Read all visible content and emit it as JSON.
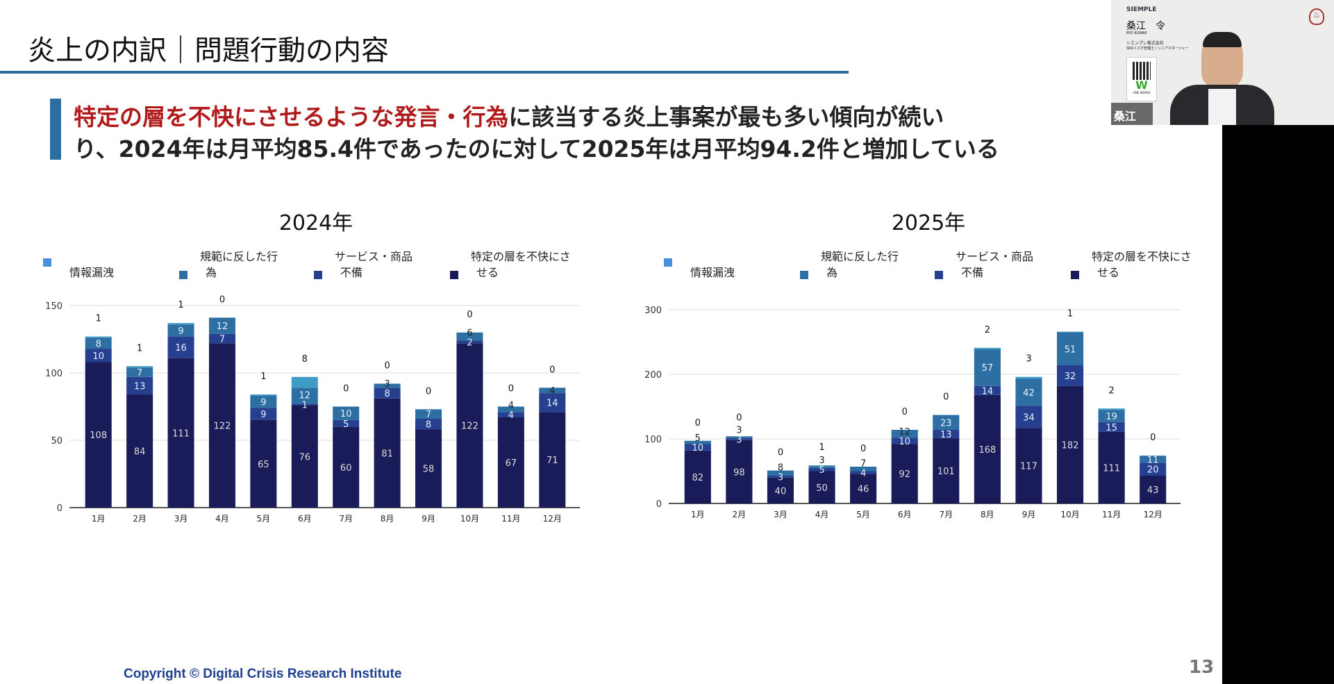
{
  "slide": {
    "title": "炎上の内訳｜問題行動の内容",
    "lead_red": "特定の層を不快にさせるような発言・行為",
    "lead_rest1": "に該当する炎上事案が最も多い傾向が続い",
    "lead_line2": "り、2024年は月平均85.4件であったのに対して2025年は月平均94.2件と増加している",
    "copyright": "Copyright © Digital Crisis Research Institute",
    "page_number": "13"
  },
  "video": {
    "brand": "SIEMPLE",
    "name": "桑江　令",
    "romaji": "RYO KUWAE",
    "company": "シエンプレ株式会社",
    "role": "SNSリスク管理士 / シニアマネージャー",
    "qr_label": "LINE WORKS",
    "name_tag": "桑江 令"
  },
  "colors": {
    "leak": "#4a8fdc",
    "norm": "#2e6fa3",
    "service": "#26408f",
    "offend": "#191c58",
    "accent": "#2a6fa0",
    "red": "#b01a1a"
  },
  "chart_data": [
    {
      "type": "bar",
      "stacked": true,
      "title": "2024年",
      "ylim": [
        0,
        150
      ],
      "yticks": [
        0,
        50,
        100,
        150
      ],
      "categories": [
        "1月",
        "2月",
        "3月",
        "4月",
        "5月",
        "6月",
        "7月",
        "8月",
        "9月",
        "10月",
        "11月",
        "12月"
      ],
      "legend": [
        "情報漏洩",
        "規範に反した行為",
        "サービス・商品不備",
        "特定の層を不快にさせる"
      ],
      "series": [
        {
          "name": "特定の層を不快にさせる",
          "values": [
            108,
            84,
            111,
            122,
            65,
            76,
            60,
            81,
            58,
            122,
            67,
            71
          ]
        },
        {
          "name": "サービス・商品不備",
          "values": [
            10,
            13,
            16,
            7,
            9,
            1,
            5,
            8,
            8,
            2,
            4,
            14
          ]
        },
        {
          "name": "規範に反した行為",
          "values": [
            8,
            7,
            9,
            12,
            9,
            12,
            10,
            3,
            7,
            6,
            4,
            4
          ]
        },
        {
          "name": "情報漏洩",
          "values": [
            1,
            1,
            1,
            0,
            1,
            8,
            0,
            0,
            0,
            0,
            0,
            0
          ]
        }
      ]
    },
    {
      "type": "bar",
      "stacked": true,
      "title": "2025年",
      "ylim": [
        0,
        300
      ],
      "yticks": [
        0,
        100,
        200,
        300
      ],
      "categories": [
        "1月",
        "2月",
        "3月",
        "4月",
        "5月",
        "6月",
        "7月",
        "8月",
        "9月",
        "10月",
        "11月",
        "12月"
      ],
      "legend": [
        "情報漏洩",
        "規範に反した行為",
        "サービス・商品不備",
        "特定の層を不快にさせる"
      ],
      "series": [
        {
          "name": "特定の層を不快にさせる",
          "values": [
            82,
            98,
            40,
            50,
            46,
            92,
            101,
            168,
            117,
            182,
            111,
            43
          ]
        },
        {
          "name": "サービス・商品不備",
          "values": [
            10,
            3,
            3,
            5,
            4,
            10,
            13,
            14,
            34,
            32,
            15,
            20
          ]
        },
        {
          "name": "規範に反した行為",
          "values": [
            5,
            3,
            8,
            3,
            7,
            12,
            23,
            57,
            42,
            51,
            19,
            11
          ]
        },
        {
          "name": "情報漏洩",
          "values": [
            0,
            0,
            0,
            1,
            0,
            0,
            0,
            2,
            3,
            1,
            2,
            0
          ]
        }
      ]
    }
  ]
}
